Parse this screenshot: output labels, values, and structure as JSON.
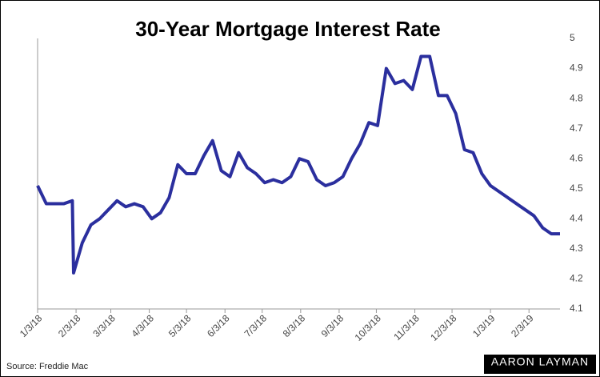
{
  "chart_data": {
    "type": "line",
    "title": "30-Year Mortgage Interest Rate",
    "source": "Source: Freddie Mac",
    "logo": "AARON LAYMAN",
    "x": [
      "1/3/18",
      "1/10/18",
      "1/17/18",
      "1/24/18",
      "1/31/18",
      "2/1/18",
      "2/8/18",
      "2/15/18",
      "2/22/18",
      "3/1/18",
      "3/8/18",
      "3/15/18",
      "3/22/18",
      "3/29/18",
      "4/5/18",
      "4/12/18",
      "4/19/18",
      "4/26/18",
      "5/3/18",
      "5/10/18",
      "5/17/18",
      "5/24/18",
      "5/31/18",
      "6/7/18",
      "6/14/18",
      "6/21/18",
      "6/28/18",
      "7/5/18",
      "7/12/18",
      "7/19/18",
      "7/26/18",
      "8/2/18",
      "8/9/18",
      "8/16/18",
      "8/23/18",
      "8/30/18",
      "9/6/18",
      "9/13/18",
      "9/20/18",
      "9/27/18",
      "10/4/18",
      "10/11/18",
      "10/18/18",
      "10/25/18",
      "11/1/18",
      "11/8/18",
      "11/15/18",
      "11/22/18",
      "11/29/18",
      "12/6/18",
      "12/13/18",
      "12/20/18",
      "12/27/18",
      "1/3/19",
      "1/10/19",
      "1/17/19",
      "1/24/19",
      "1/31/19",
      "2/7/19",
      "2/14/19",
      "2/21/19",
      "2/28/19"
    ],
    "series": [
      {
        "name": "30-Year Mortgage Interest Rate",
        "color": "#2b2f9e",
        "values": [
          4.51,
          4.45,
          4.45,
          4.45,
          4.46,
          4.22,
          4.32,
          4.38,
          4.4,
          4.43,
          4.46,
          4.44,
          4.45,
          4.44,
          4.4,
          4.42,
          4.47,
          4.58,
          4.55,
          4.55,
          4.61,
          4.66,
          4.56,
          4.54,
          4.62,
          4.57,
          4.55,
          4.52,
          4.53,
          4.52,
          4.54,
          4.6,
          4.59,
          4.53,
          4.51,
          4.52,
          4.54,
          4.6,
          4.65,
          4.72,
          4.71,
          4.9,
          4.85,
          4.86,
          4.83,
          4.94,
          4.94,
          4.81,
          4.81,
          4.75,
          4.63,
          4.62,
          4.55,
          4.51,
          4.49,
          4.47,
          4.45,
          4.43,
          4.41,
          4.37,
          4.35,
          4.35
        ]
      }
    ],
    "xlim": [
      "1/3/18",
      "2/28/19"
    ],
    "xticks": [
      "1/3/18",
      "2/3/18",
      "3/3/18",
      "4/3/18",
      "5/3/18",
      "6/3/18",
      "7/3/18",
      "8/3/18",
      "9/3/18",
      "10/3/18",
      "11/3/18",
      "12/3/18",
      "1/3/19",
      "2/3/19"
    ],
    "ylim": [
      4.1,
      5
    ],
    "yticks": [
      4.1,
      4.2,
      4.3,
      4.4,
      4.5,
      4.6,
      4.7,
      4.8,
      4.9,
      5
    ],
    "y_axis_side": "right",
    "grid": false
  }
}
